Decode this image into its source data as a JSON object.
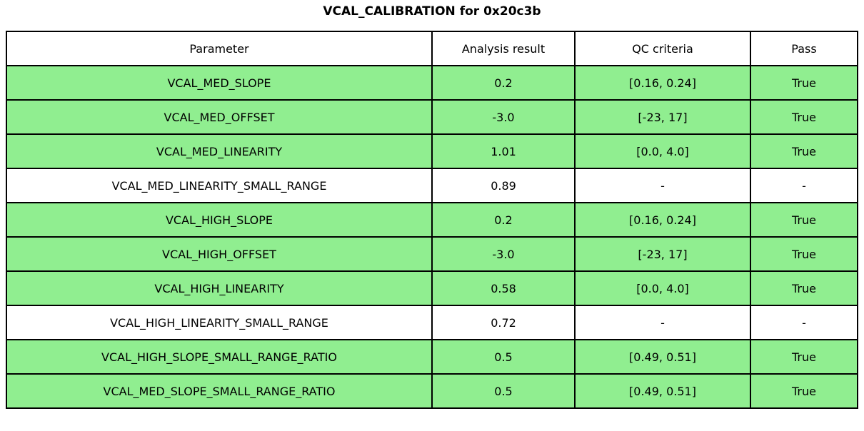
{
  "chart_data": {
    "type": "table",
    "title": "VCAL_CALIBRATION for 0x20c3b",
    "columns": [
      "Parameter",
      "Analysis result",
      "QC criteria",
      "Pass"
    ],
    "rows": [
      {
        "parameter": "VCAL_MED_SLOPE",
        "result": "0.2",
        "qc": "[0.16, 0.24]",
        "pass": "True",
        "highlighted": true
      },
      {
        "parameter": "VCAL_MED_OFFSET",
        "result": "-3.0",
        "qc": "[-23, 17]",
        "pass": "True",
        "highlighted": true
      },
      {
        "parameter": "VCAL_MED_LINEARITY",
        "result": "1.01",
        "qc": "[0.0, 4.0]",
        "pass": "True",
        "highlighted": true
      },
      {
        "parameter": "VCAL_MED_LINEARITY_SMALL_RANGE",
        "result": "0.89",
        "qc": "-",
        "pass": "-",
        "highlighted": false
      },
      {
        "parameter": "VCAL_HIGH_SLOPE",
        "result": "0.2",
        "qc": "[0.16, 0.24]",
        "pass": "True",
        "highlighted": true
      },
      {
        "parameter": "VCAL_HIGH_OFFSET",
        "result": "-3.0",
        "qc": "[-23, 17]",
        "pass": "True",
        "highlighted": true
      },
      {
        "parameter": "VCAL_HIGH_LINEARITY",
        "result": "0.58",
        "qc": "[0.0, 4.0]",
        "pass": "True",
        "highlighted": true
      },
      {
        "parameter": "VCAL_HIGH_LINEARITY_SMALL_RANGE",
        "result": "0.72",
        "qc": "-",
        "pass": "-",
        "highlighted": false
      },
      {
        "parameter": "VCAL_HIGH_SLOPE_SMALL_RANGE_RATIO",
        "result": "0.5",
        "qc": "[0.49, 0.51]",
        "pass": "True",
        "highlighted": true
      },
      {
        "parameter": "VCAL_MED_SLOPE_SMALL_RANGE_RATIO",
        "result": "0.5",
        "qc": "[0.49, 0.51]",
        "pass": "True",
        "highlighted": true
      }
    ],
    "layout": {
      "legend": "none",
      "grid": "table-borders"
    }
  },
  "colors": {
    "pass_row_background": "#90ee90",
    "default_row_background": "#ffffff",
    "border": "#000000",
    "text": "#000000"
  }
}
